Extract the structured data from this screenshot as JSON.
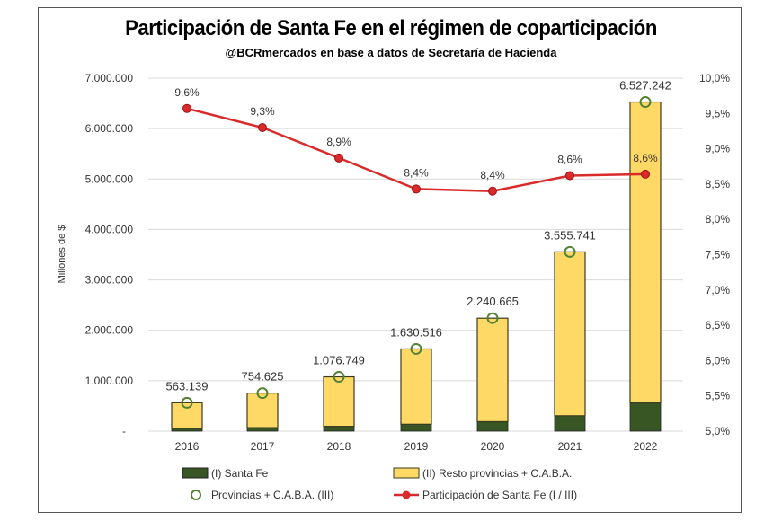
{
  "chart_data": {
    "type": "bar",
    "title": "Participación de Santa Fe en el régimen de coparticipación",
    "subtitle": "@BCRmercados en base a datos de Secretaría de Hacienda",
    "ylabel": "Millones de $",
    "ylim": [
      0,
      7000000
    ],
    "y2lim": [
      5.0,
      10.0
    ],
    "yticks": [
      "-",
      "1.000.000",
      "2.000.000",
      "3.000.000",
      "4.000.000",
      "5.000.000",
      "6.000.000",
      "7.000.000"
    ],
    "y2ticks": [
      "5,0%",
      "5,5%",
      "6,0%",
      "6,5%",
      "7,0%",
      "7,5%",
      "8,0%",
      "8,5%",
      "9,0%",
      "9,5%",
      "10,0%"
    ],
    "grid": true,
    "legend_position": "bottom",
    "categories": [
      "2016",
      "2017",
      "2018",
      "2019",
      "2020",
      "2021",
      "2022"
    ],
    "series": [
      {
        "name": "(I) Santa Fe",
        "kind": "stacked-bar",
        "color": "#375623",
        "values": [
          54061,
          70180,
          95831,
          136963,
          188216,
          305794,
          561343
        ]
      },
      {
        "name": "(II) Resto provincias + C.A.B.A.",
        "kind": "stacked-bar",
        "color": "#FFD966",
        "values": [
          509078,
          684445,
          980918,
          1493553,
          2052449,
          3249947,
          5965899
        ]
      },
      {
        "name": "Provincias + C.A.B.A. (III)",
        "kind": "marker",
        "color": "#548235",
        "values": [
          563139,
          754625,
          1076749,
          1630516,
          2240665,
          3555741,
          6527242
        ],
        "labels": [
          "563.139",
          "754.625",
          "1.076.749",
          "1.630.516",
          "2.240.665",
          "3.555.741",
          "6.527.242"
        ]
      },
      {
        "name": "Participación de Santa Fe (I / III)",
        "kind": "line",
        "axis": "right",
        "color": "#D92B2B",
        "values": [
          9.57,
          9.3,
          8.87,
          8.43,
          8.4,
          8.62,
          8.64
        ],
        "labels": [
          "9,6%",
          "9,3%",
          "8,9%",
          "8,4%",
          "8,4%",
          "8,6%",
          "8,6%"
        ]
      }
    ]
  }
}
